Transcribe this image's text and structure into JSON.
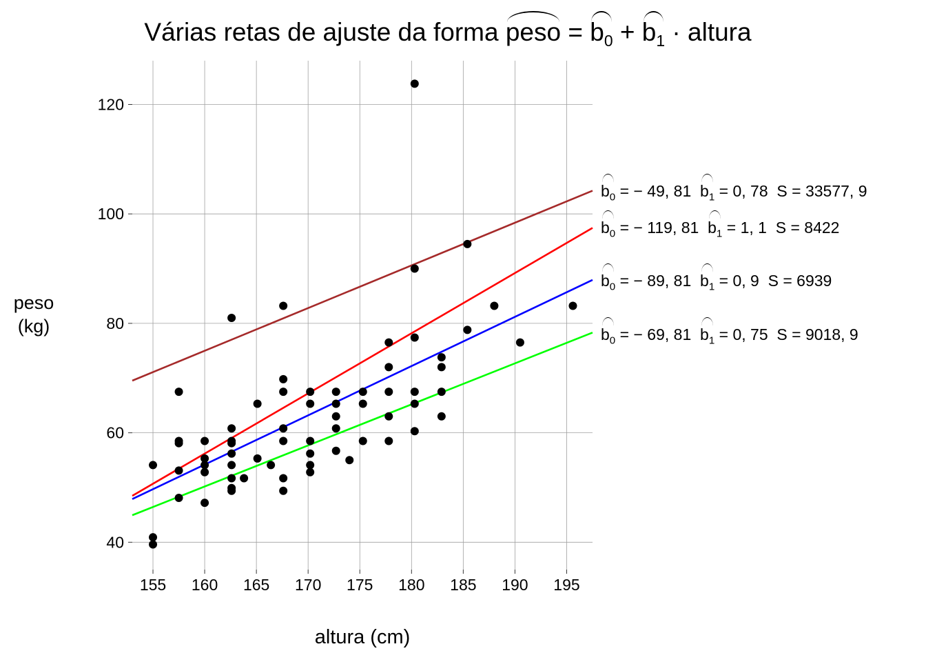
{
  "title": {
    "prefix": "Várias retas de ajuste da forma",
    "lhs": "peso",
    "eq": "=",
    "b0": "b",
    "b0_sub": "0",
    "plus": "+",
    "b1": "b",
    "b1_sub": "1",
    "dot": "·",
    "var": "altura"
  },
  "axis_labels": {
    "y_line1": "peso",
    "y_line2": "(kg)",
    "x": "altura (cm)"
  },
  "annotations": [
    {
      "b0_text": "= − 49, 81",
      "b1_text": "= 0, 78",
      "s_text": "S = 33577, 9",
      "color": "#a52a2a"
    },
    {
      "b0_text": "= − 119, 81",
      "b1_text": "= 1, 1",
      "s_text": "S = 8422",
      "color": "#ff0000"
    },
    {
      "b0_text": "= − 89, 81",
      "b1_text": "= 0, 9",
      "s_text": "S = 6939",
      "color": "#0000ff"
    },
    {
      "b0_text": "= − 69, 81",
      "b1_text": "= 0, 75",
      "s_text": "S = 9018, 9",
      "color": "#00ff00"
    }
  ],
  "chart_data": {
    "type": "scatter",
    "xlabel": "altura (cm)",
    "ylabel": "peso (kg)",
    "xlim": [
      153,
      197.5
    ],
    "ylim": [
      35,
      128
    ],
    "xticks": [
      155,
      160,
      165,
      170,
      175,
      180,
      185,
      190,
      195
    ],
    "yticks": [
      40,
      60,
      80,
      100,
      120
    ],
    "grid": true,
    "points": [
      [
        155,
        54.1
      ],
      [
        155,
        40.9
      ],
      [
        155,
        39.6
      ],
      [
        157.5,
        67.5
      ],
      [
        157.5,
        58.5
      ],
      [
        157.5,
        58.1
      ],
      [
        157.5,
        53.1
      ],
      [
        157.5,
        48.1
      ],
      [
        160,
        58.5
      ],
      [
        160,
        55.3
      ],
      [
        160,
        54.1
      ],
      [
        160,
        52.8
      ],
      [
        160,
        47.2
      ],
      [
        162.6,
        81.0
      ],
      [
        162.6,
        60.8
      ],
      [
        162.6,
        58.5
      ],
      [
        162.6,
        58.1
      ],
      [
        162.6,
        56.2
      ],
      [
        162.6,
        54.1
      ],
      [
        162.6,
        51.7
      ],
      [
        162.6,
        49.9
      ],
      [
        162.6,
        49.4
      ],
      [
        163.8,
        51.7
      ],
      [
        165.1,
        65.3
      ],
      [
        165.1,
        55.3
      ],
      [
        166.4,
        54.1
      ],
      [
        167.6,
        83.2
      ],
      [
        167.6,
        69.8
      ],
      [
        167.6,
        67.5
      ],
      [
        167.6,
        60.8
      ],
      [
        167.6,
        58.5
      ],
      [
        167.6,
        51.7
      ],
      [
        167.6,
        49.4
      ],
      [
        170.2,
        67.5
      ],
      [
        170.2,
        65.3
      ],
      [
        170.2,
        58.5
      ],
      [
        170.2,
        56.2
      ],
      [
        170.2,
        54.1
      ],
      [
        170.2,
        52.8
      ],
      [
        172.7,
        67.5
      ],
      [
        172.7,
        65.3
      ],
      [
        172.7,
        63.0
      ],
      [
        172.7,
        60.8
      ],
      [
        172.7,
        56.7
      ],
      [
        174,
        55.0
      ],
      [
        175.3,
        67.5
      ],
      [
        175.3,
        65.3
      ],
      [
        175.3,
        58.5
      ],
      [
        177.8,
        76.5
      ],
      [
        177.8,
        72.0
      ],
      [
        177.8,
        67.5
      ],
      [
        177.8,
        63.0
      ],
      [
        177.8,
        58.5
      ],
      [
        180.3,
        123.8
      ],
      [
        180.3,
        90.0
      ],
      [
        180.3,
        77.4
      ],
      [
        180.3,
        67.5
      ],
      [
        180.3,
        65.3
      ],
      [
        180.3,
        60.3
      ],
      [
        182.9,
        73.8
      ],
      [
        182.9,
        72.0
      ],
      [
        182.9,
        67.5
      ],
      [
        182.9,
        63.0
      ],
      [
        185.4,
        94.5
      ],
      [
        185.4,
        78.8
      ],
      [
        188,
        83.2
      ],
      [
        190.5,
        76.5
      ],
      [
        195.6,
        83.2
      ]
    ],
    "lines": [
      {
        "b0": -49.81,
        "b1": 0.78,
        "S": 33577.9,
        "color": "#a52a2a"
      },
      {
        "b0": -119.81,
        "b1": 1.1,
        "S": 8422,
        "color": "#ff0000"
      },
      {
        "b0": -89.81,
        "b1": 0.9,
        "S": 6939,
        "color": "#0000ff"
      },
      {
        "b0": -69.81,
        "b1": 0.75,
        "S": 9018.9,
        "color": "#00ff00"
      }
    ]
  }
}
